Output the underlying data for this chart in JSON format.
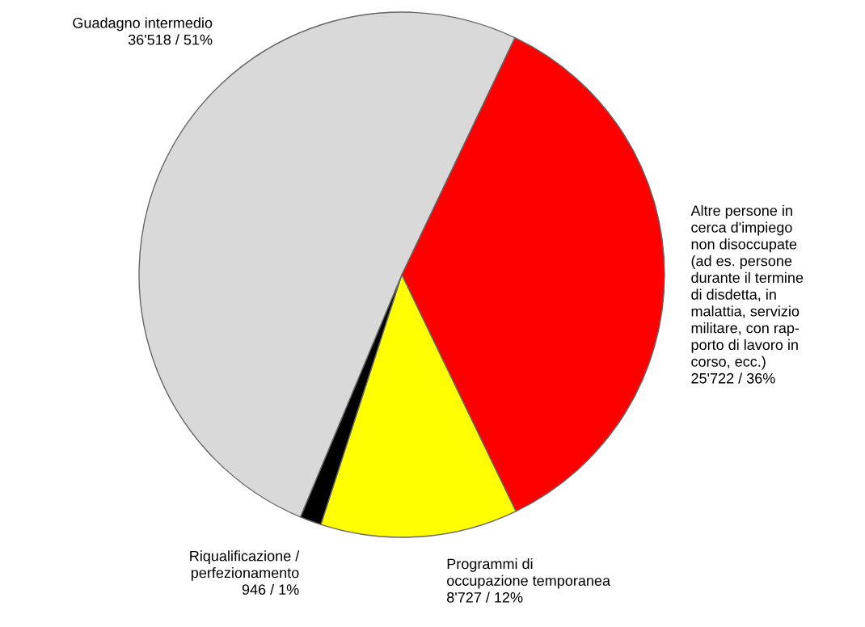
{
  "chart_data": {
    "type": "pie",
    "categories": [
      "Altre persone in\ncerca d'impiego\nnon disoccupate\n(ad es. persone\ndurante il termine\ndi disdetta, in\nmalattia, servizio\nmilitare, con rap-\nporto di lavoro in\ncorso, ecc.)",
      "Programmi di\noccupazione temporanea",
      "Riqualificazione /\nperfezionamento",
      "Guadagno intermedio"
    ],
    "values": [
      25722,
      8727,
      946,
      36518
    ],
    "value_labels": [
      "25'722 / 36%",
      "8'727 / 12%",
      "946 / 1%",
      "36'518 / 51%"
    ],
    "colors": [
      "#ff0000",
      "#ffff00",
      "#000000",
      "#d9d9d9"
    ]
  }
}
